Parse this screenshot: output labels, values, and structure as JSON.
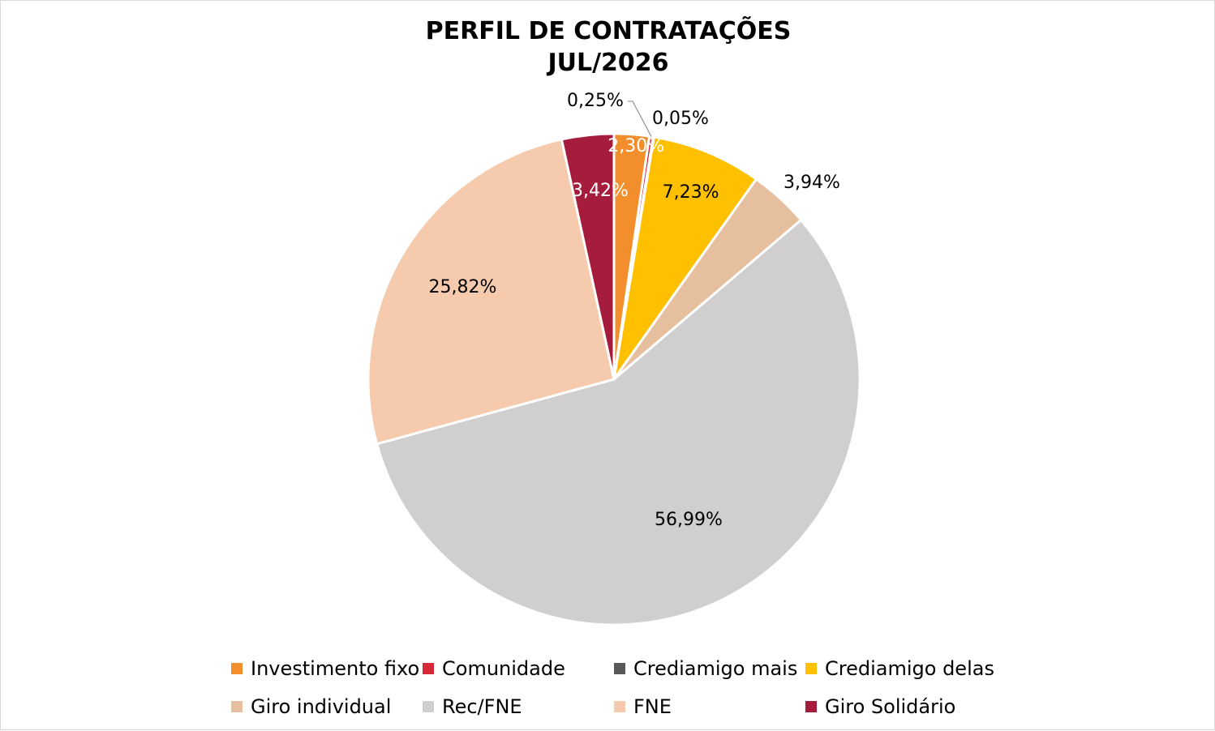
{
  "chart_data": {
    "type": "pie",
    "title": "PERFIL DE CONTRATAÇÕES",
    "subtitle": "JUL/2026",
    "slices": [
      {
        "name": "Investimento fixo",
        "value": 2.3,
        "label": "2,30%",
        "color": "#f28e2b"
      },
      {
        "name": "Comunidade",
        "value": 0.25,
        "label": "0,25%",
        "color": "#d62839"
      },
      {
        "name": "Crediamigo mais",
        "value": 0.05,
        "label": "0,05%",
        "color": "#595959"
      },
      {
        "name": "Crediamigo delas",
        "value": 7.23,
        "label": "7,23%",
        "color": "#ffc000"
      },
      {
        "name": "Giro individual",
        "value": 3.94,
        "label": "3,94%",
        "color": "#e6bf9e"
      },
      {
        "name": "Rec/FNE",
        "value": 56.99,
        "label": "56,99%",
        "color": "#d0cece"
      },
      {
        "name": "FNE",
        "value": 25.82,
        "label": "25,82%",
        "color": "#f6cbad"
      },
      {
        "name": "Giro Solidário",
        "value": 3.42,
        "label": "3,42%",
        "color": "#a51c3d"
      }
    ],
    "legend_position": "bottom"
  }
}
